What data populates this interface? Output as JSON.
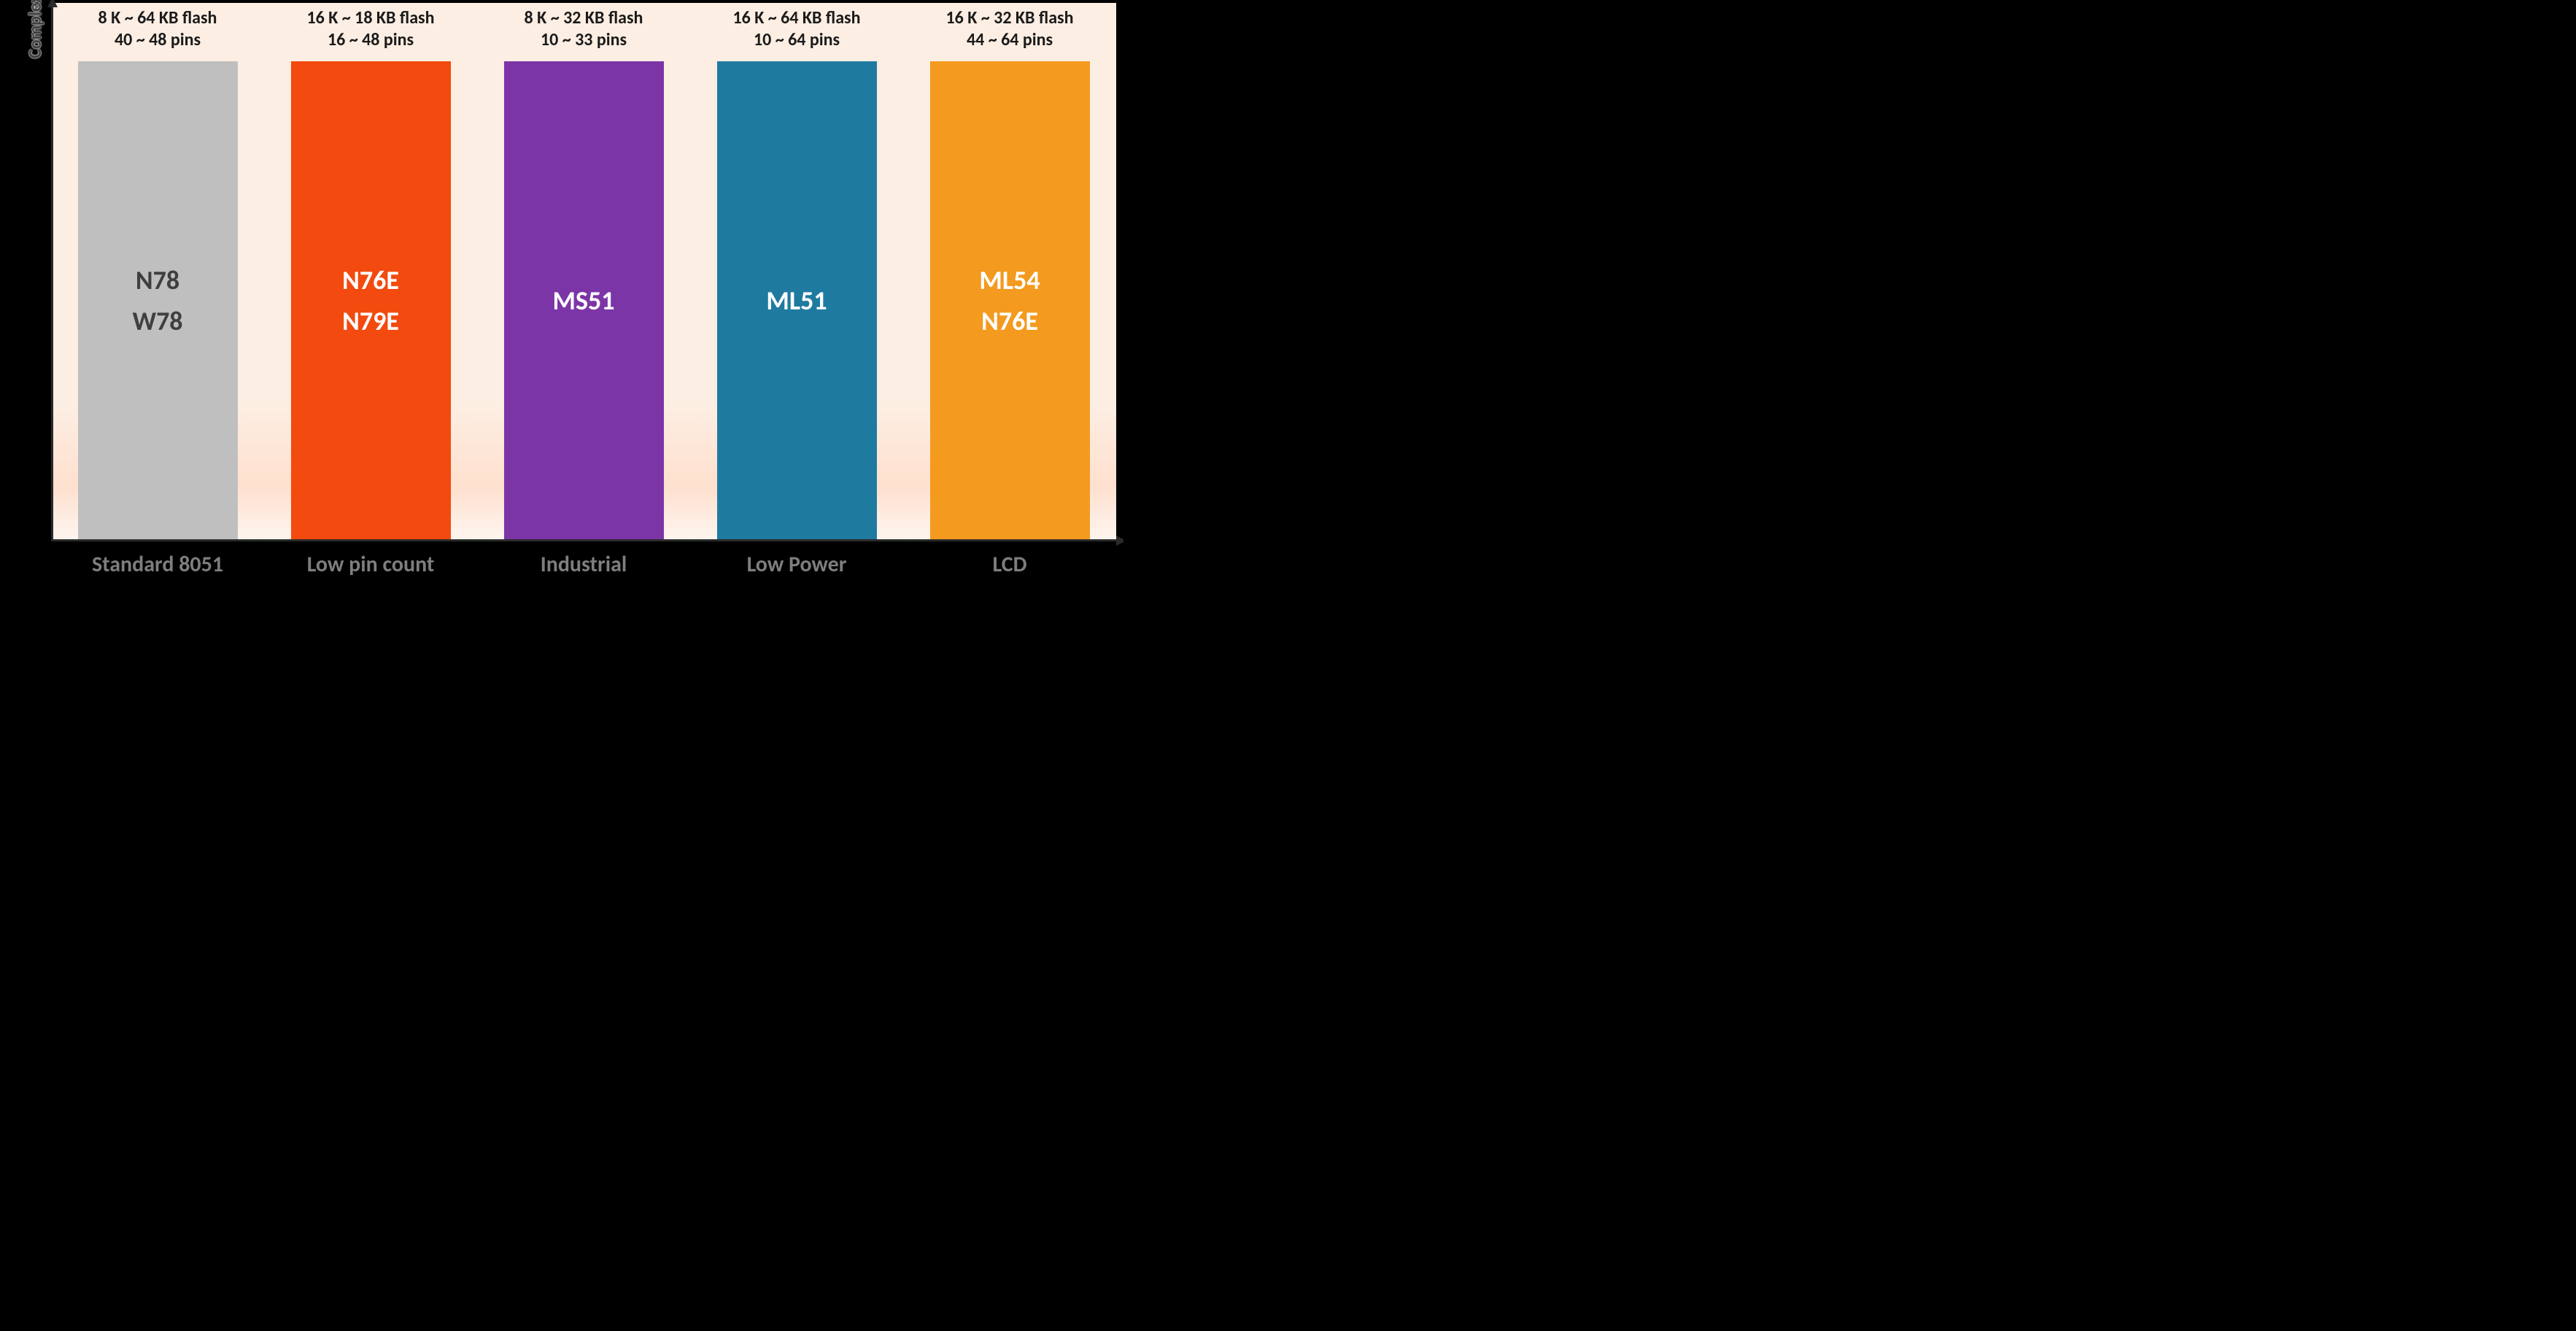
{
  "chart": {
    "type": "bar-category-infographic",
    "background": "#000000",
    "plot_gradient": {
      "top": "#fdeee3",
      "mid": "#fee0ce",
      "bottom": "#fef5ef"
    },
    "y_axis": {
      "label": "Complexity",
      "label_color": "#3f3f3f",
      "label_fontsize": 24,
      "line_color": "#2a2a2a",
      "arrow": true
    },
    "x_axis": {
      "line_color": "#2a2a2a",
      "arrow": true,
      "category_fontsize": 30,
      "category_color": "#7e7e7e"
    },
    "top_label_fontsize": 24,
    "top_label_color": "#1a1a1a",
    "series_fontsize": 36,
    "bar_width_pct": 75,
    "bars": [
      {
        "category": "Standard 8051",
        "flash": "8 K ~ 64 KB flash",
        "pins": "40 ~ 48 pins",
        "bar_color": "#bfbfbf",
        "series_text_color": "#3f3f3f",
        "series": [
          "N78",
          "W78"
        ]
      },
      {
        "category": "Low pin count",
        "flash": "16 K ~ 18 KB flash",
        "pins": "16 ~ 48 pins",
        "bar_color": "#f24a0f",
        "series_text_color": "#ffffff",
        "series": [
          "N76E",
          "N79E"
        ]
      },
      {
        "category": "Industrial",
        "flash": "8 K ~ 32 KB flash",
        "pins": "10 ~ 33 pins",
        "bar_color": "#7c35a6",
        "series_text_color": "#ffffff",
        "series": [
          "MS51"
        ]
      },
      {
        "category": "Low Power",
        "flash": "16 K ~ 64 KB flash",
        "pins": "10 ~ 64 pins",
        "bar_color": "#1f7aa0",
        "series_text_color": "#ffffff",
        "series": [
          "ML51"
        ]
      },
      {
        "category": "LCD",
        "flash": "16 K ~ 32 KB flash",
        "pins": "44 ~ 64 pins",
        "bar_color": "#f39a1f",
        "series_text_color": "#ffffff",
        "series": [
          "ML54",
          "N76E"
        ]
      }
    ]
  }
}
